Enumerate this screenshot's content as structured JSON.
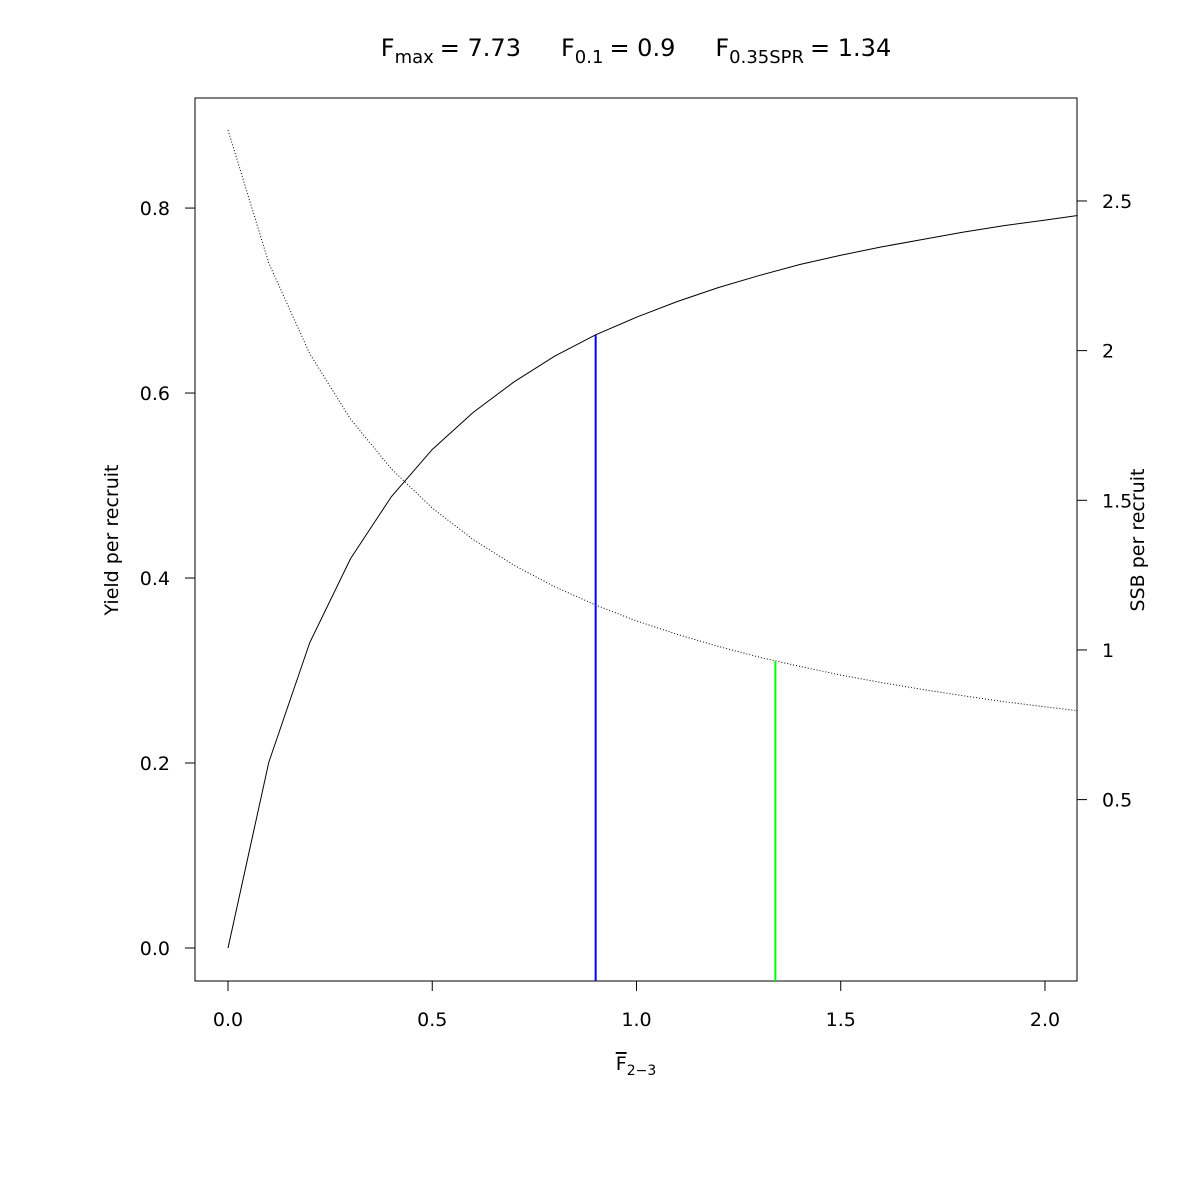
{
  "chart_data": {
    "type": "line",
    "title_parts": [
      {
        "main": "F",
        "sub": "max",
        "rest": "= 7.73"
      },
      {
        "main": "F",
        "sub": "0.1",
        "rest": "= 0.9"
      },
      {
        "main": "F",
        "sub": "0.35SPR",
        "rest": "= 1.34"
      }
    ],
    "x_label": {
      "main": "F",
      "sub": "2−3"
    },
    "y_label": "Yield per recruit",
    "y2_label": "SSB per recruit",
    "x": [
      0,
      0.1,
      0.2,
      0.3,
      0.4,
      0.5,
      0.6,
      0.7,
      0.8,
      0.9,
      1.0,
      1.1,
      1.2,
      1.3,
      1.4,
      1.5,
      1.6,
      1.7,
      1.8,
      1.9,
      2.0,
      2.08
    ],
    "series": [
      {
        "color": "#000000",
        "dash": "solid",
        "axis": "y",
        "values": [
          0,
          0.201,
          0.33,
          0.421,
          0.488,
          0.539,
          0.579,
          0.612,
          0.64,
          0.663,
          0.682,
          0.699,
          0.714,
          0.727,
          0.739,
          0.749,
          0.758,
          0.766,
          0.774,
          0.781,
          0.787,
          0.792
        ]
      },
      {
        "color": "#000000",
        "dash": "dotted",
        "axis": "y2",
        "values": [
          2.737,
          2.292,
          1.99,
          1.771,
          1.605,
          1.474,
          1.369,
          1.283,
          1.211,
          1.15,
          1.097,
          1.052,
          1.012,
          0.976,
          0.945,
          0.916,
          0.891,
          0.868,
          0.847,
          0.827,
          0.81,
          0.797
        ]
      }
    ],
    "reference_lines": [
      {
        "x": 0.9,
        "y": 0.663,
        "axis": "y",
        "color": "#0000ff"
      },
      {
        "x": 1.34,
        "y": 0.963,
        "axis": "y2",
        "color": "#00ff00"
      }
    ],
    "xlim": [
      -0.0808,
      2.0784
    ],
    "ylim": [
      -0.0357,
      0.919
    ],
    "y2lim": [
      -0.106,
      2.844
    ],
    "xticks": [
      {
        "value": 0,
        "label": "0.0"
      },
      {
        "value": 0.5,
        "label": "0.5"
      },
      {
        "value": 1,
        "label": "1.0"
      },
      {
        "value": 1.5,
        "label": "1.5"
      },
      {
        "value": 2,
        "label": "2.0"
      }
    ],
    "yticks": [
      {
        "value": 0,
        "label": "0.0"
      },
      {
        "value": 0.2,
        "label": "0.2"
      },
      {
        "value": 0.4,
        "label": "0.4"
      },
      {
        "value": 0.6,
        "label": "0.6"
      },
      {
        "value": 0.8,
        "label": "0.8"
      }
    ],
    "y2ticks": [
      0.5,
      1,
      1.5,
      2,
      2.5
    ]
  }
}
